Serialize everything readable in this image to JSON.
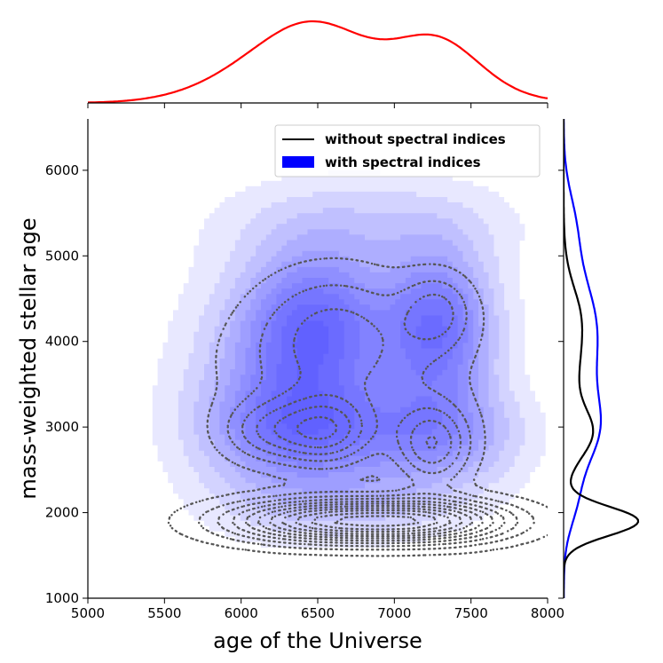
{
  "chart_data": {
    "type": "kde-joint",
    "xlabel": "age of the Universe",
    "ylabel": "mass-weighted stellar age",
    "xlim": [
      5000,
      8000
    ],
    "ylim": [
      1000,
      6600
    ],
    "xticks": [
      5000,
      5500,
      6000,
      6500,
      7000,
      7500,
      8000
    ],
    "yticks": [
      1000,
      2000,
      3000,
      4000,
      5000,
      6000
    ],
    "legend": {
      "placement": "top-right",
      "entries": [
        {
          "label": "without spectral indices",
          "style": "line",
          "color": "#000000"
        },
        {
          "label": "with spectral indices",
          "style": "patch",
          "color": "#0000ff"
        }
      ]
    },
    "series": [
      {
        "name": "with spectral indices",
        "style": "filled-contours",
        "color": "#0000ff",
        "x_marginal_color": "#ff0000",
        "y_marginal_color": "#0000ff",
        "components": [
          {
            "x": 6500,
            "y": 4150,
            "sx": 320,
            "sy": 650,
            "w": 1.0
          },
          {
            "x": 7280,
            "y": 4150,
            "sx": 260,
            "sy": 650,
            "w": 1.0
          },
          {
            "x": 6450,
            "y": 2950,
            "sx": 420,
            "sy": 420,
            "w": 0.75
          },
          {
            "x": 7300,
            "y": 2900,
            "sx": 360,
            "sy": 420,
            "w": 0.6
          },
          {
            "x": 6100,
            "y": 3500,
            "sx": 380,
            "sy": 900,
            "w": 0.35
          },
          {
            "x": 6850,
            "y": 5400,
            "sx": 650,
            "sy": 380,
            "w": 0.25
          },
          {
            "x": 6700,
            "y": 2100,
            "sx": 500,
            "sy": 300,
            "w": 0.35
          }
        ]
      },
      {
        "name": "without spectral indices",
        "style": "dotted-contours",
        "color": "#555555",
        "y_marginal_color": "#000000",
        "components": [
          {
            "x": 6550,
            "y": 1900,
            "sx": 450,
            "sy": 170,
            "w": 1.0
          },
          {
            "x": 7250,
            "y": 1900,
            "sx": 380,
            "sy": 170,
            "w": 0.8
          },
          {
            "x": 6550,
            "y": 2950,
            "sx": 220,
            "sy": 280,
            "w": 0.55
          },
          {
            "x": 7250,
            "y": 2800,
            "sx": 170,
            "sy": 320,
            "w": 0.5
          },
          {
            "x": 6150,
            "y": 2950,
            "sx": 200,
            "sy": 250,
            "w": 0.3
          },
          {
            "x": 6650,
            "y": 3700,
            "sx": 500,
            "sy": 500,
            "w": 0.25
          },
          {
            "x": 7280,
            "y": 4350,
            "sx": 160,
            "sy": 300,
            "w": 0.3
          },
          {
            "x": 6600,
            "y": 4300,
            "sx": 350,
            "sy": 450,
            "w": 0.2
          }
        ]
      }
    ]
  }
}
